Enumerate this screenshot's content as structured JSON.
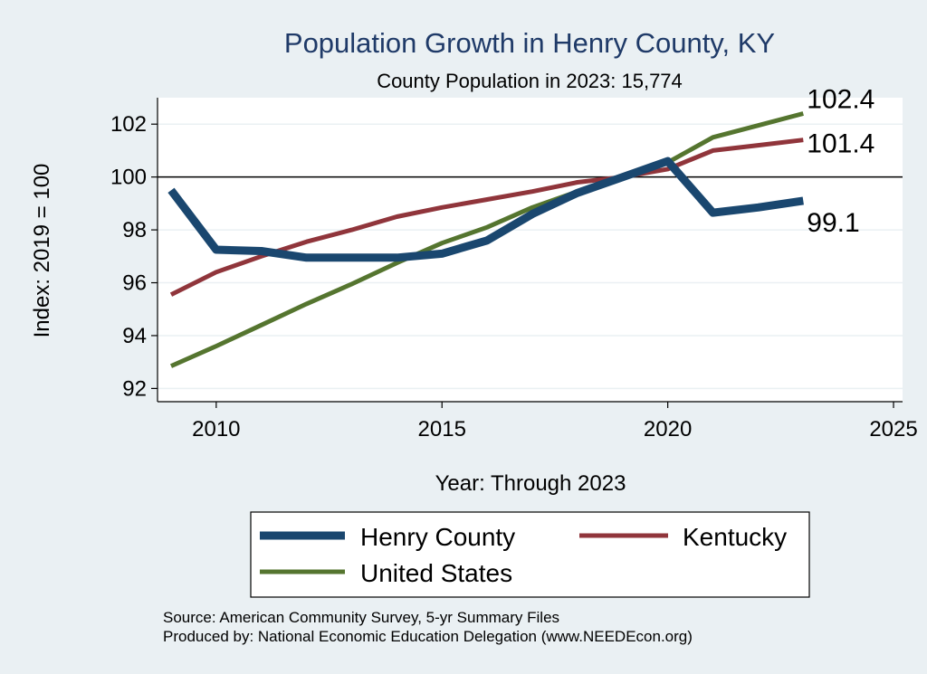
{
  "chart_data": {
    "type": "line",
    "title": "Population Growth in Henry County, KY",
    "subtitle": "County Population in 2023: 15,774",
    "xlabel": "Year: Through 2023",
    "ylabel": "Index: 2019 = 100",
    "xlim": [
      2008.7,
      2025.2
    ],
    "ylim": [
      91.5,
      103
    ],
    "xticks": [
      2010,
      2015,
      2020,
      2025
    ],
    "yticks": [
      92,
      94,
      96,
      98,
      100,
      102
    ],
    "reference_line": 100,
    "grid": true,
    "legend_position": "bottom",
    "x": [
      2009,
      2010,
      2011,
      2012,
      2013,
      2014,
      2015,
      2016,
      2017,
      2018,
      2019,
      2020,
      2021,
      2022,
      2023
    ],
    "series": [
      {
        "name": "Henry  County",
        "color": "#1a476f",
        "values": [
          99.5,
          97.25,
          97.2,
          96.95,
          96.95,
          96.95,
          97.1,
          97.6,
          98.6,
          99.4,
          100.0,
          100.6,
          98.65,
          98.85,
          99.1
        ],
        "end_label": "99.1"
      },
      {
        "name": "Kentucky",
        "color": "#90353b",
        "values": [
          95.55,
          96.4,
          97.0,
          97.55,
          98.0,
          98.5,
          98.85,
          99.15,
          99.45,
          99.8,
          100.0,
          100.3,
          101.0,
          101.2,
          101.4
        ],
        "end_label": "101.4"
      },
      {
        "name": "United States",
        "color": "#55752f",
        "values": [
          92.85,
          93.6,
          94.4,
          95.2,
          95.95,
          96.75,
          97.5,
          98.1,
          98.85,
          99.45,
          100.0,
          100.55,
          101.5,
          101.95,
          102.4
        ],
        "end_label": "102.4"
      }
    ],
    "source_lines": [
      "Source: American Community Survey, 5-yr Summary Files",
      "Produced by: National Economic Education Delegation (www.NEEDEcon.org)"
    ]
  }
}
